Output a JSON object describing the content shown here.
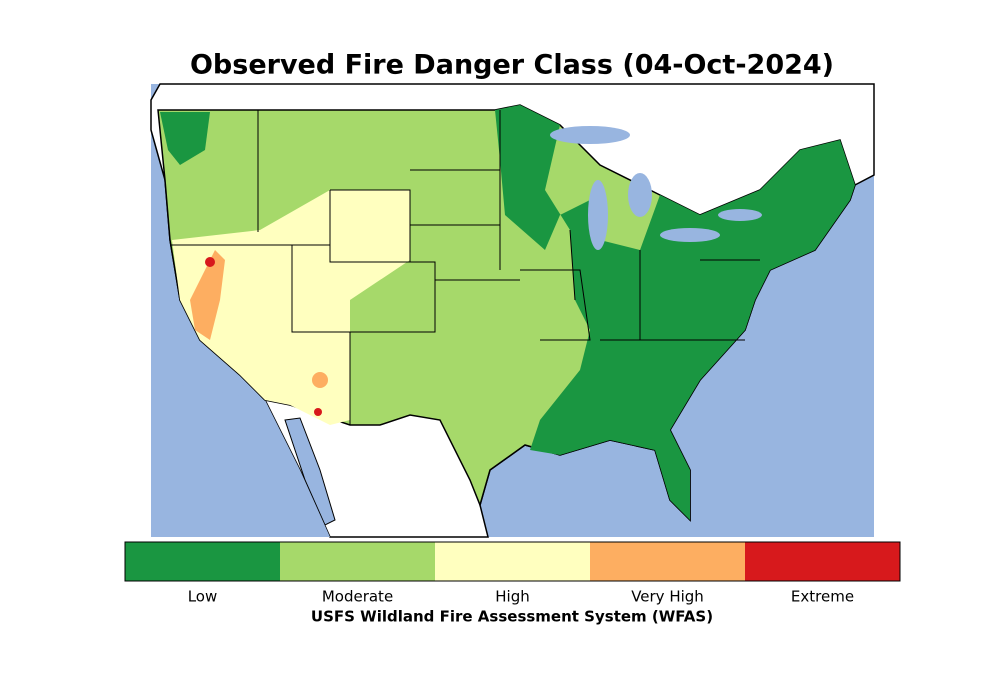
{
  "title": "Observed Fire Danger Class (04-Oct-2024)",
  "legend": {
    "classes": [
      {
        "label": "Low",
        "color": "#1a9641"
      },
      {
        "label": "Moderate",
        "color": "#a6d96a"
      },
      {
        "label": "High",
        "color": "#ffffbf"
      },
      {
        "label": "Very High",
        "color": "#fdae61"
      },
      {
        "label": "Extreme",
        "color": "#d7191c"
      }
    ],
    "caption": "USFS Wildland Fire Assessment System (WFAS)"
  }
}
